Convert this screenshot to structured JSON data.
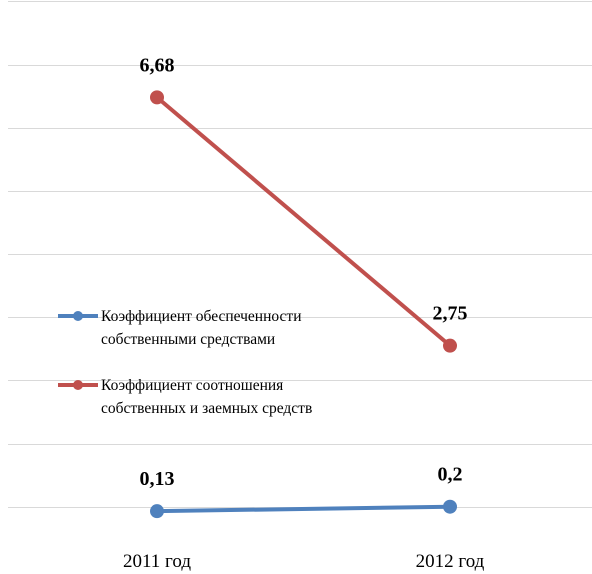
{
  "chart_data": {
    "type": "line",
    "categories": [
      "2011 год",
      "2012 год"
    ],
    "series": [
      {
        "name": "Коэффициент  обеспеченности собственными средствами",
        "legend_lines": [
          "Коэффициент  обеспеченности",
          "собственными средствами"
        ],
        "values": [
          0.13,
          0.2
        ],
        "labels": [
          "0,13",
          "0,2"
        ],
        "color": "#4f81bd"
      },
      {
        "name": "Коэффициент  соотношения собственных и заемных средств",
        "legend_lines": [
          "Коэффициент  соотношения",
          "собственных и заемных средств"
        ],
        "values": [
          6.68,
          2.75
        ],
        "labels": [
          "6,68",
          "2,75"
        ],
        "color": "#c0504d"
      }
    ],
    "ylim": [
      -0.2,
      8
    ],
    "grid": true,
    "legend_position": "left-middle"
  }
}
